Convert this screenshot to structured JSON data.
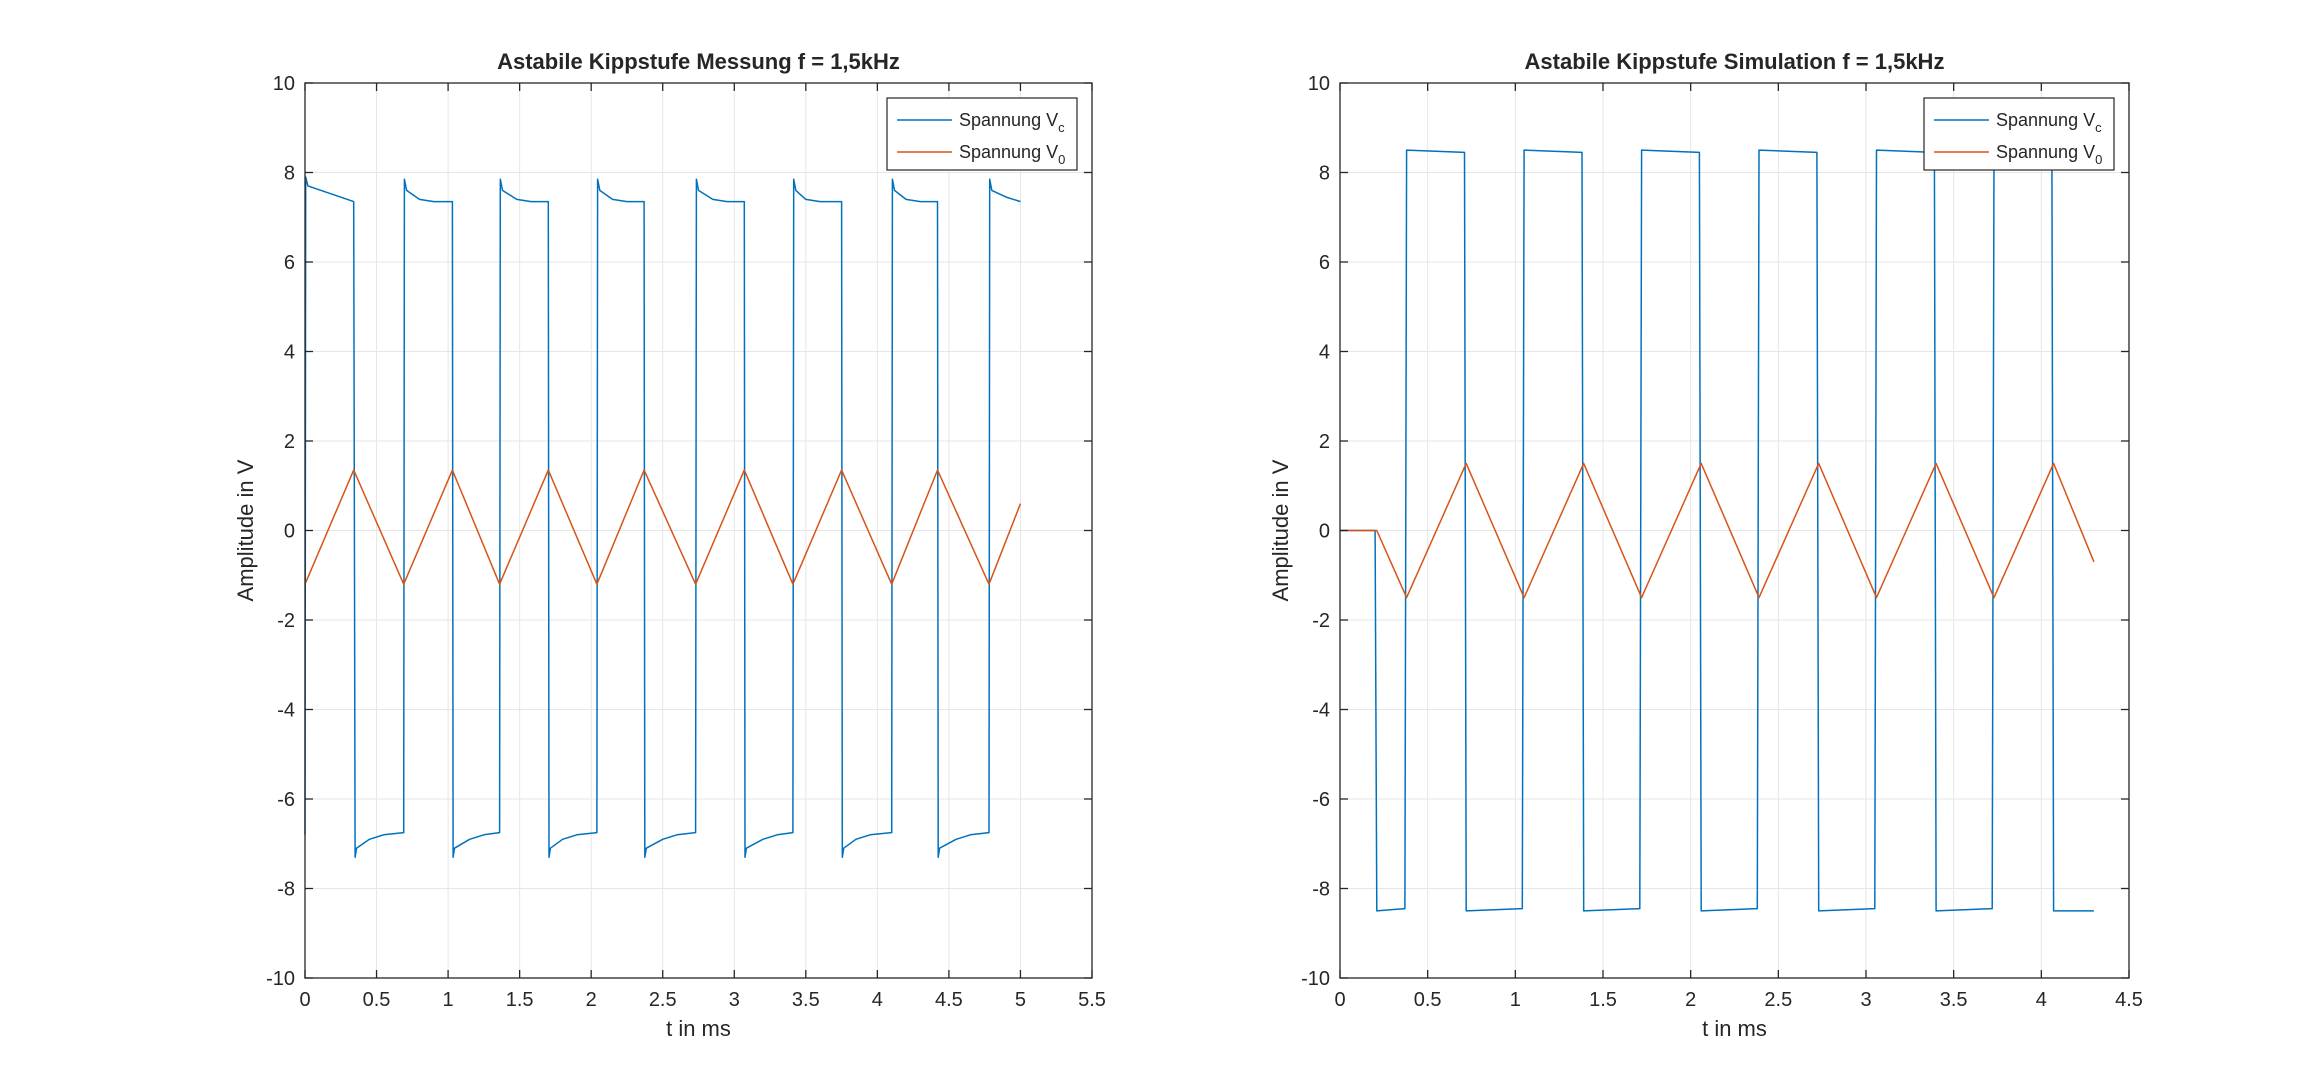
{
  "chart_data": [
    {
      "type": "line",
      "title": "Astabile Kippstufe Messung f = 1,5kHz",
      "xlabel": "t in ms",
      "ylabel": "Amplitude in V",
      "xlim": [
        0,
        5.5
      ],
      "ylim": [
        -10,
        10
      ],
      "xticks": [
        "0",
        "0.5",
        "1",
        "1.5",
        "2",
        "2.5",
        "3",
        "3.5",
        "4",
        "4.5",
        "5",
        "5.5"
      ],
      "yticks": [
        "-10",
        "-8",
        "-6",
        "-4",
        "-2",
        "0",
        "2",
        "4",
        "6",
        "8",
        "10"
      ],
      "grid": true,
      "legend_position": "top-right",
      "series": [
        {
          "name": "Spannung Vc",
          "legend": {
            "base": "Spannung V",
            "sub": "c"
          },
          "color": "#0072BD",
          "x": [
            0,
            0.005,
            0.02,
            0.34,
            0.35,
            0.36,
            0.45,
            0.55,
            0.69,
            0.695,
            0.71,
            0.8,
            0.9,
            1.03,
            1.035,
            1.045,
            1.15,
            1.25,
            1.36,
            1.365,
            1.38,
            1.48,
            1.58,
            1.7,
            1.705,
            1.715,
            1.8,
            1.9,
            2.04,
            2.045,
            2.06,
            2.15,
            2.25,
            2.37,
            2.375,
            2.385,
            2.5,
            2.6,
            2.73,
            2.735,
            2.75,
            2.85,
            2.95,
            3.07,
            3.075,
            3.085,
            3.2,
            3.3,
            3.41,
            3.415,
            3.43,
            3.5,
            3.6,
            3.75,
            3.755,
            3.765,
            3.85,
            3.95,
            4.1,
            4.105,
            4.12,
            4.2,
            4.3,
            4.42,
            4.425,
            4.435,
            4.55,
            4.65,
            4.78,
            4.785,
            4.8,
            4.9,
            5.0
          ],
          "y": [
            -6.8,
            7.9,
            7.7,
            7.35,
            -7.3,
            -7.1,
            -6.9,
            -6.8,
            -6.75,
            7.85,
            7.6,
            7.4,
            7.35,
            7.35,
            -7.3,
            -7.1,
            -6.9,
            -6.8,
            -6.75,
            7.85,
            7.6,
            7.4,
            7.35,
            7.35,
            -7.3,
            -7.1,
            -6.9,
            -6.8,
            -6.75,
            7.85,
            7.6,
            7.4,
            7.35,
            7.35,
            -7.3,
            -7.1,
            -6.9,
            -6.8,
            -6.75,
            7.85,
            7.6,
            7.4,
            7.35,
            7.35,
            -7.3,
            -7.1,
            -6.9,
            -6.8,
            -6.75,
            7.85,
            7.6,
            7.4,
            7.35,
            7.35,
            -7.3,
            -7.1,
            -6.9,
            -6.8,
            -6.75,
            7.85,
            7.6,
            7.4,
            7.35,
            7.35,
            -7.3,
            -7.1,
            -6.9,
            -6.8,
            -6.75,
            7.85,
            7.6,
            7.45,
            7.35
          ]
        },
        {
          "name": "Spannung V0",
          "legend": {
            "base": "Spannung V",
            "sub": "0"
          },
          "color": "#D95319",
          "x": [
            0,
            0.34,
            0.69,
            1.03,
            1.36,
            1.7,
            2.04,
            2.37,
            2.73,
            3.07,
            3.41,
            3.75,
            4.1,
            4.42,
            4.78,
            5.0
          ],
          "y": [
            -1.2,
            1.35,
            -1.2,
            1.35,
            -1.2,
            1.35,
            -1.2,
            1.35,
            -1.2,
            1.35,
            -1.2,
            1.35,
            -1.2,
            1.35,
            -1.2,
            0.6
          ]
        }
      ]
    },
    {
      "type": "line",
      "title": "Astabile Kippstufe Simulation f = 1,5kHz",
      "xlabel": "t in ms",
      "ylabel": "Amplitude in V",
      "xlim": [
        0,
        4.5
      ],
      "ylim": [
        -10,
        10
      ],
      "xticks": [
        "0",
        "0.5",
        "1",
        "1.5",
        "2",
        "2.5",
        "3",
        "3.5",
        "4",
        "4.5"
      ],
      "yticks": [
        "-10",
        "-8",
        "-6",
        "-4",
        "-2",
        "0",
        "2",
        "4",
        "6",
        "8",
        "10"
      ],
      "grid": true,
      "legend_position": "top-right",
      "series": [
        {
          "name": "Spannung Vc",
          "legend": {
            "base": "Spannung V",
            "sub": "c"
          },
          "color": "#0072BD",
          "x": [
            0,
            0.2,
            0.21,
            0.37,
            0.38,
            0.71,
            0.72,
            1.04,
            1.05,
            1.38,
            1.39,
            1.71,
            1.72,
            2.05,
            2.06,
            2.38,
            2.39,
            2.72,
            2.73,
            3.05,
            3.06,
            3.39,
            3.4,
            3.72,
            3.73,
            4.06,
            4.07,
            4.3
          ],
          "y": [
            0,
            0,
            -8.5,
            -8.45,
            8.5,
            8.45,
            -8.5,
            -8.45,
            8.5,
            8.45,
            -8.5,
            -8.45,
            8.5,
            8.45,
            -8.5,
            -8.45,
            8.5,
            8.45,
            -8.5,
            -8.45,
            8.5,
            8.45,
            -8.5,
            -8.45,
            8.5,
            8.45,
            -8.5,
            -8.5
          ]
        },
        {
          "name": "Spannung V0",
          "legend": {
            "base": "Spannung V",
            "sub": "0"
          },
          "color": "#D95319",
          "x": [
            0,
            0.21,
            0.38,
            0.72,
            1.05,
            1.39,
            1.72,
            2.06,
            2.39,
            2.73,
            3.06,
            3.4,
            3.73,
            4.07,
            4.3
          ],
          "y": [
            0,
            0,
            -1.5,
            1.5,
            -1.5,
            1.5,
            -1.5,
            1.5,
            -1.5,
            1.5,
            -1.5,
            1.5,
            -1.5,
            1.5,
            -0.7
          ]
        }
      ]
    }
  ]
}
